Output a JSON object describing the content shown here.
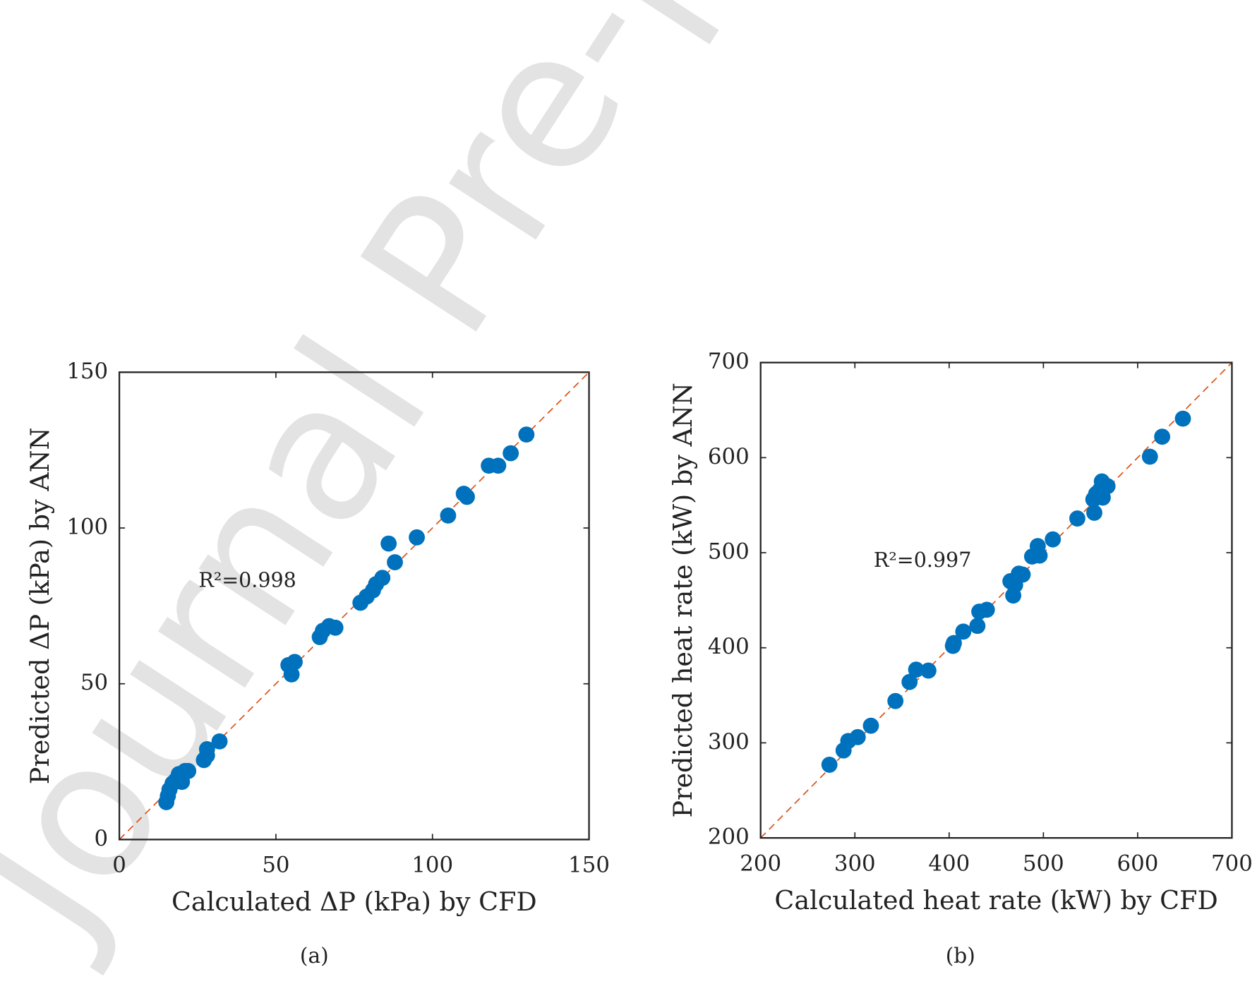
{
  "watermark": "Journal Pre-proof",
  "chart_data": [
    {
      "type": "scatter",
      "caption": "(a)",
      "xlabel": "Calculated ΔP (kPa) by CFD",
      "ylabel": "Predicted ΔP (kPa) by ANN",
      "annotation": "R²=0.998",
      "color": "#0072bd",
      "line_color": "#d95319",
      "xlim": [
        0,
        150
      ],
      "ylim": [
        0,
        150
      ],
      "xticks": [
        0,
        50,
        100,
        150
      ],
      "yticks": [
        0,
        50,
        100,
        150
      ],
      "x": [
        15,
        15.5,
        16,
        17,
        18,
        20,
        19,
        21,
        22,
        27,
        28,
        28,
        32,
        54,
        55,
        56,
        64,
        65,
        67,
        69,
        77,
        79,
        81,
        82,
        84,
        86,
        88,
        95,
        105,
        110,
        111,
        118,
        121,
        125,
        130
      ],
      "y": [
        12,
        14,
        16,
        18,
        19,
        18.5,
        21,
        22,
        22,
        25.5,
        27,
        29,
        31.5,
        56,
        53,
        57,
        65,
        67,
        68.5,
        68,
        76,
        78,
        80,
        82,
        84,
        95,
        89,
        97,
        104,
        111,
        110,
        120,
        120,
        124,
        130
      ]
    },
    {
      "type": "scatter",
      "caption": "(b)",
      "xlabel": "Calculated heat rate (kW) by CFD",
      "ylabel": "Predicted heat rate (kW) by ANN",
      "annotation": "R²=0.997",
      "color": "#0072bd",
      "line_color": "#d95319",
      "xlim": [
        200,
        700
      ],
      "ylim": [
        200,
        700
      ],
      "xticks": [
        200,
        300,
        400,
        500,
        600,
        700
      ],
      "yticks": [
        200,
        300,
        400,
        500,
        600,
        700
      ],
      "x": [
        273,
        288,
        293,
        303,
        317,
        343,
        358,
        365,
        378,
        404,
        405,
        415,
        430,
        432,
        440,
        465,
        468,
        470,
        474,
        478,
        488,
        494,
        496,
        510,
        536,
        553,
        554,
        556,
        560,
        562,
        563,
        568,
        613,
        626,
        648
      ],
      "y": [
        277,
        292,
        302,
        306,
        318,
        344,
        364,
        377,
        376,
        402,
        405,
        417,
        423,
        438,
        440,
        470,
        455,
        466,
        478,
        477,
        496,
        507,
        497,
        514,
        536,
        556,
        542,
        562,
        566,
        575,
        558,
        570,
        601,
        622,
        641
      ]
    }
  ]
}
